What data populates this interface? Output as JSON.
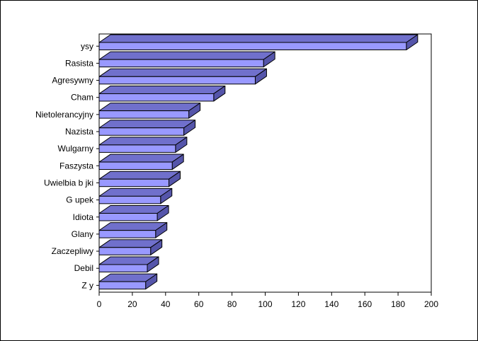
{
  "chart_data": {
    "type": "bar",
    "orientation": "horizontal",
    "style": "3d",
    "categories": [
      "ysy",
      "Rasista",
      "Agresywny",
      "Cham",
      "Nietolerancyjny",
      "Nazista",
      "Wulgarny",
      "Faszysta",
      "Uwielbia b  jki",
      "G upek",
      "Idiota",
      "Glany",
      "Zaczepliwy",
      "Debil",
      "Z y"
    ],
    "values": [
      185,
      99,
      94,
      69,
      54,
      51,
      46,
      44,
      42,
      37,
      35,
      34,
      31,
      29,
      28
    ],
    "xlim": [
      0,
      200
    ],
    "xticks": [
      0,
      20,
      40,
      60,
      80,
      100,
      120,
      140,
      160,
      180,
      200
    ],
    "title": "",
    "xlabel": "",
    "ylabel": "",
    "grid": false,
    "legend": "none",
    "colors": {
      "bar_front": "#9999ff",
      "bar_top": "#7070cc",
      "bar_side": "#5555aa",
      "outline": "#000000"
    }
  }
}
